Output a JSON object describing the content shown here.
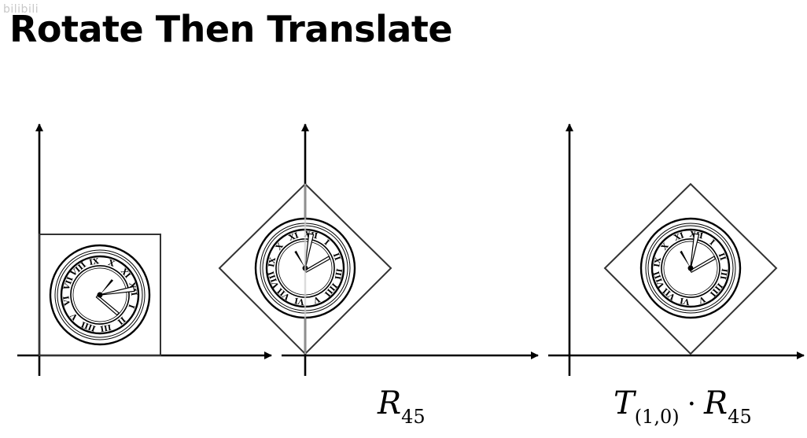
{
  "slide": {
    "title": "Rotate Then Translate",
    "watermark": "bilibili"
  },
  "captions": {
    "r45": {
      "main": "R",
      "sub": "45"
    },
    "t_r45": {
      "t_main": "T",
      "t_sub": "(1,0)",
      "operator": "·",
      "r_main": "R",
      "r_sub": "45"
    }
  },
  "colors": {
    "ink": "#000000",
    "outline": "#333333",
    "faint_axis": "#cccccc",
    "background": "#ffffff"
  },
  "clock": {
    "numerals": [
      "XII",
      "I",
      "II",
      "III",
      "IIII",
      "V",
      "VI",
      "VII",
      "VIII",
      "IX",
      "X",
      "XI"
    ],
    "rotations_deg": [
      0,
      45,
      45
    ],
    "panel_translation": [
      "none",
      "none",
      "(1,0)"
    ]
  }
}
